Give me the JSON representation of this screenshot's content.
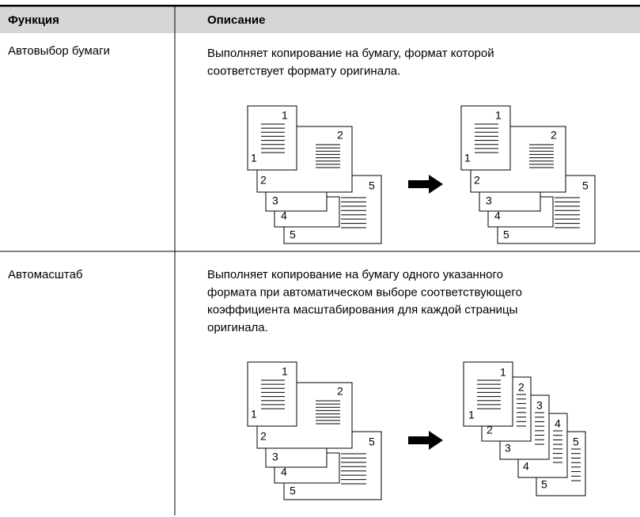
{
  "table": {
    "header": [
      "Функция",
      "Описание"
    ],
    "rows": [
      {
        "function": "Автовыбор бумаги",
        "description": [
          "Выполняет копирование на бумагу, формат которой",
          "соответствует формату оригинала."
        ],
        "diagram": {
          "pages": [
            "1",
            "2",
            "3",
            "4",
            "5"
          ]
        }
      },
      {
        "function": "Автомасштаб",
        "description": [
          "Выполняет копирование на бумагу одного указанного",
          "формата при автоматическом выборе соответствующего",
          "коэффициента масштабирования для каждой страницы",
          "оригинала."
        ],
        "diagram": {
          "pages": [
            "1",
            "2",
            "3",
            "4",
            "5"
          ]
        }
      }
    ]
  }
}
